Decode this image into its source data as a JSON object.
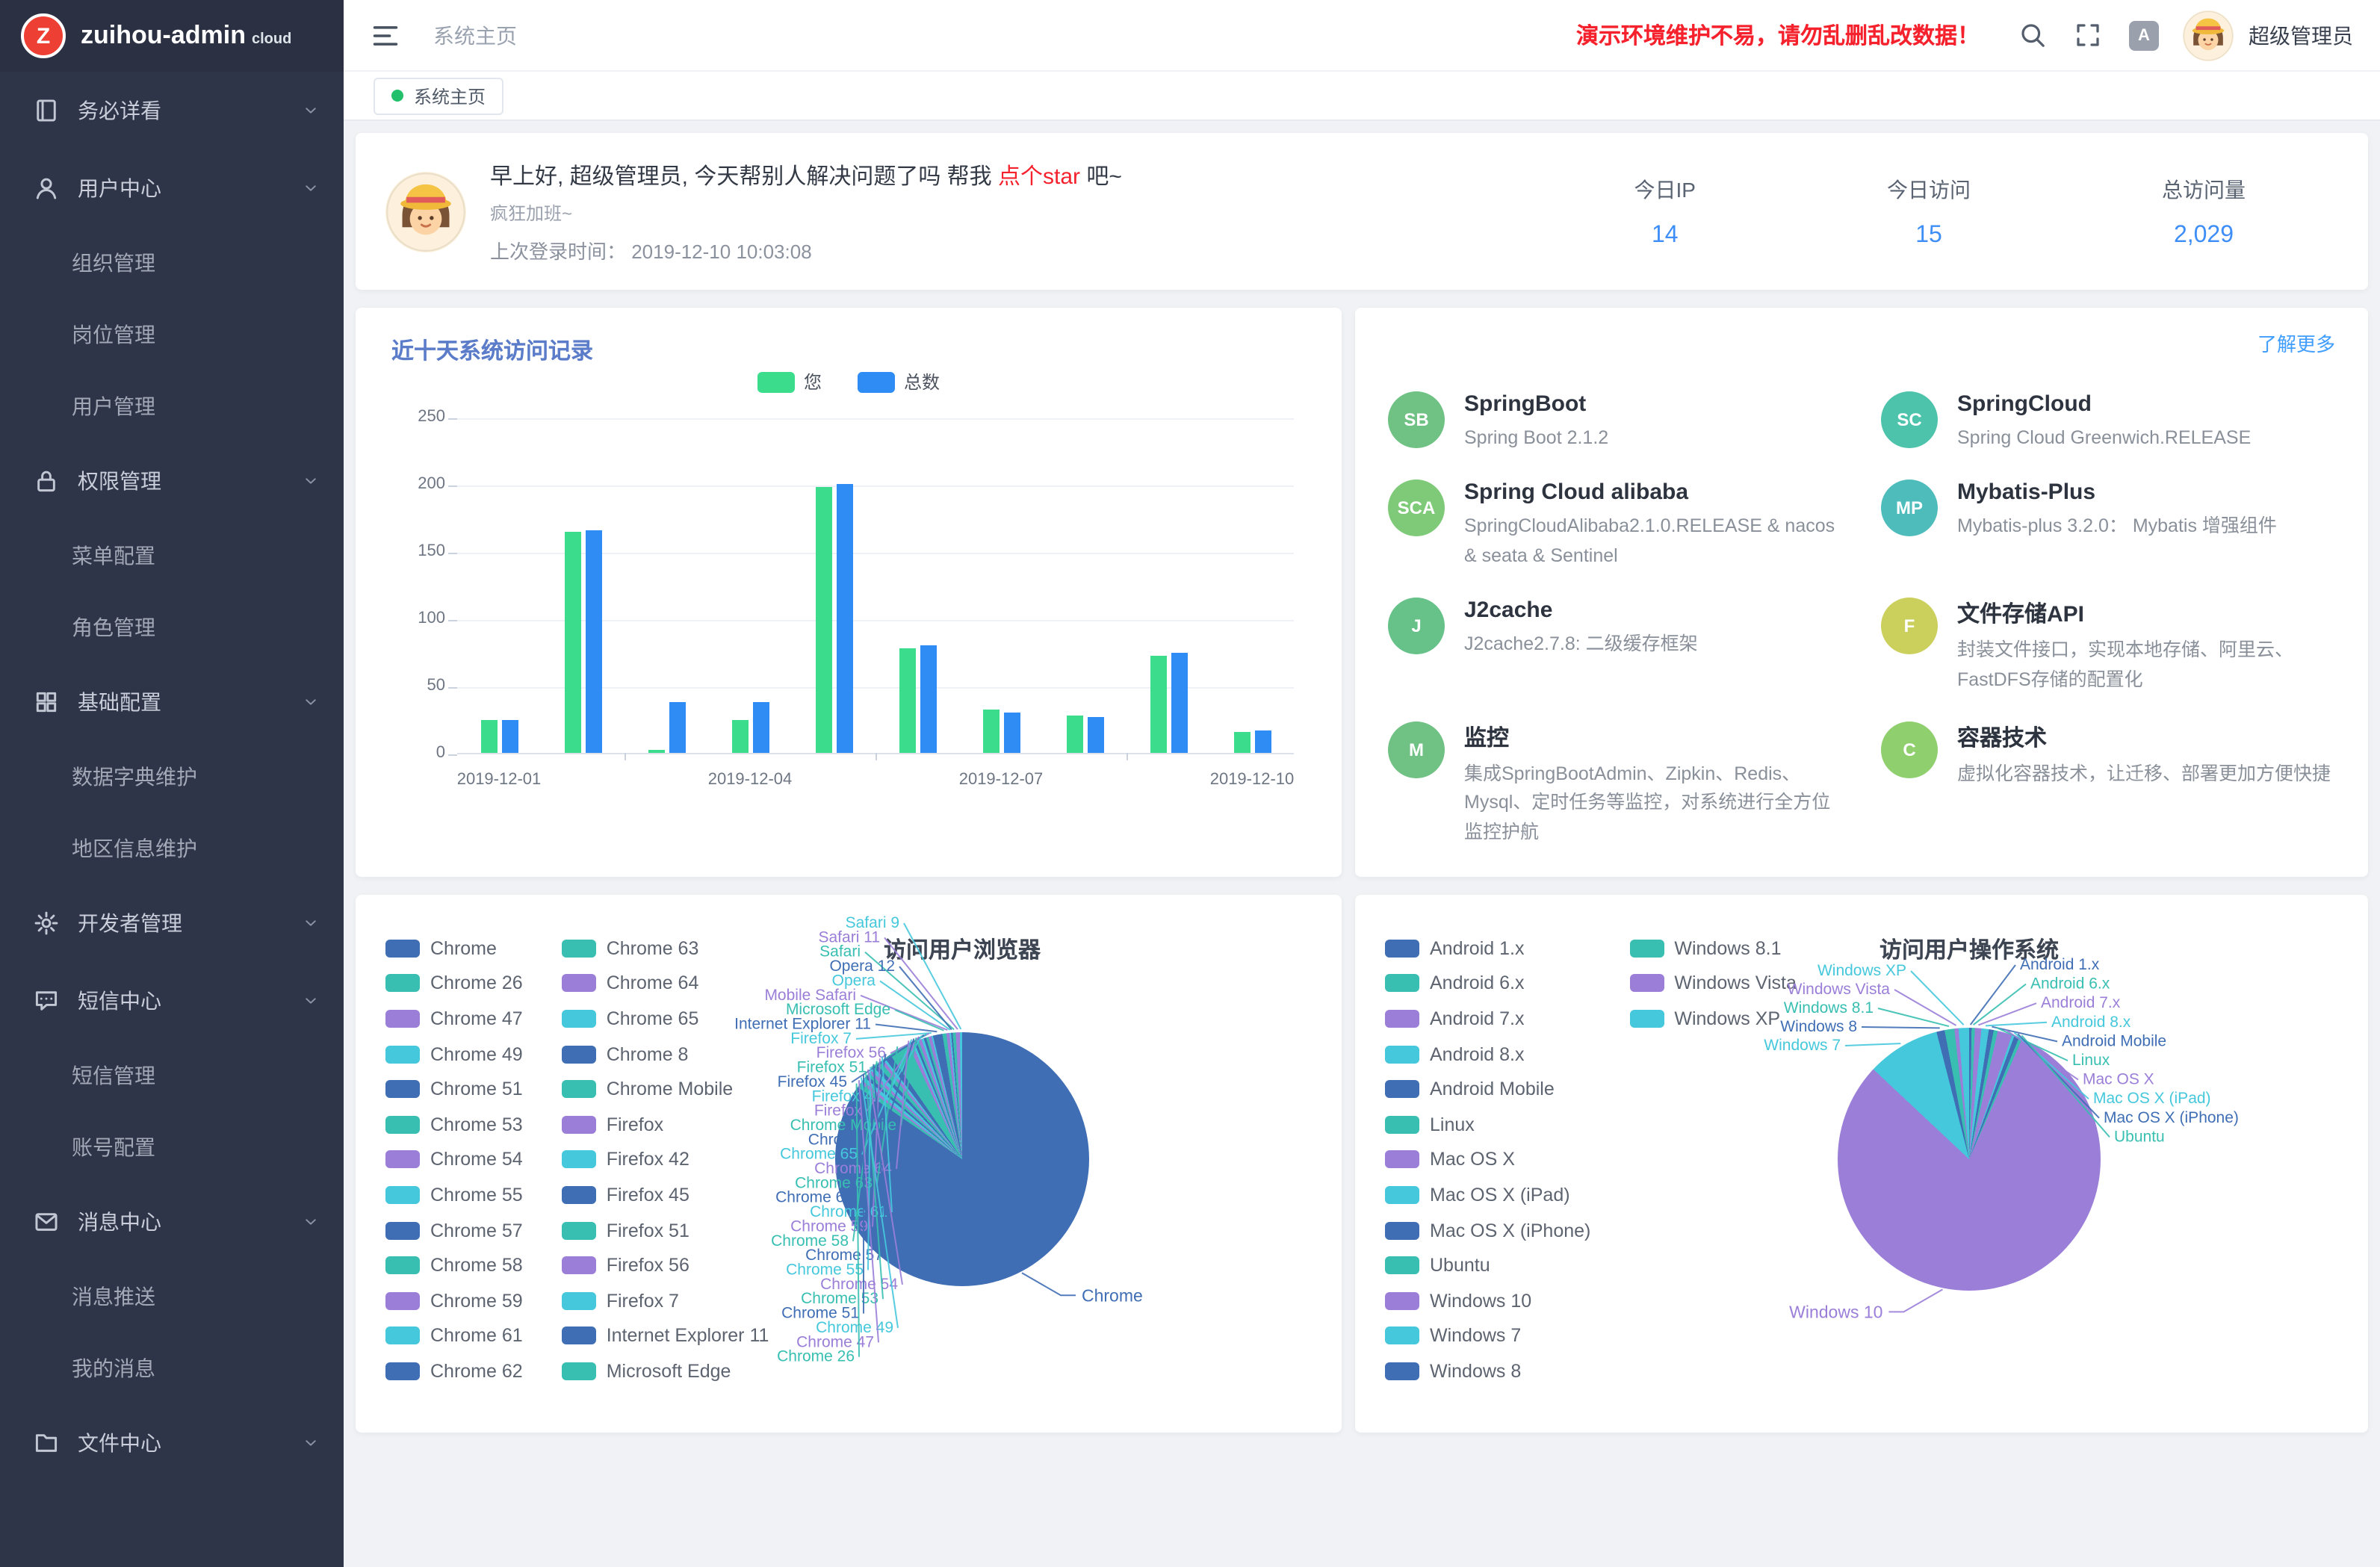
{
  "brand": {
    "logo_letter": "Z",
    "name": "zuihou-admin",
    "suffix": "cloud"
  },
  "header": {
    "breadcrumb": "系统主页",
    "warning": "演示环境维护不易，请勿乱删乱改数据！",
    "username": "超级管理员",
    "icons": [
      "menu-fold-icon",
      "search-icon",
      "fullscreen-icon",
      "font-size-icon",
      "user-avatar"
    ]
  },
  "tabbar": {
    "tabs": [
      {
        "label": "系统主页",
        "active": true
      }
    ]
  },
  "sidebar": {
    "items": [
      {
        "label": "务必详看",
        "icon": "book-icon",
        "expanded": false,
        "children": []
      },
      {
        "label": "用户中心",
        "icon": "user-icon",
        "expanded": true,
        "children": [
          "组织管理",
          "岗位管理",
          "用户管理"
        ]
      },
      {
        "label": "权限管理",
        "icon": "lock-icon",
        "expanded": true,
        "children": [
          "菜单配置",
          "角色管理"
        ]
      },
      {
        "label": "基础配置",
        "icon": "grid-icon",
        "expanded": true,
        "children": [
          "数据字典维护",
          "地区信息维护"
        ]
      },
      {
        "label": "开发者管理",
        "icon": "gear-icon",
        "expanded": false,
        "children": []
      },
      {
        "label": "短信中心",
        "icon": "sms-icon",
        "expanded": true,
        "children": [
          "短信管理",
          "账号配置"
        ]
      },
      {
        "label": "消息中心",
        "icon": "message-icon",
        "expanded": true,
        "children": [
          "消息推送",
          "我的消息"
        ]
      },
      {
        "label": "文件中心",
        "icon": "folder-icon",
        "expanded": false,
        "children": []
      }
    ]
  },
  "greeting": {
    "text_prefix": "早上好, 超级管理员, 今天帮别人解决问题了吗 帮我 ",
    "link": "点个star",
    "text_suffix": " 吧~",
    "mood": "疯狂加班~",
    "last_login": "上次登录时间： 2019-12-10 10:03:08",
    "stats": [
      {
        "label": "今日IP",
        "value": "14"
      },
      {
        "label": "今日访问",
        "value": "15"
      },
      {
        "label": "总访问量",
        "value": "2,029"
      }
    ]
  },
  "features": {
    "more_link": "了解更多",
    "items": [
      {
        "badge": "SB",
        "badge_color": "#6fc184",
        "title": "SpringBoot",
        "desc": "Spring Boot 2.1.2"
      },
      {
        "badge": "SC",
        "badge_color": "#4ec3ab",
        "title": "SpringCloud",
        "desc": "Spring Cloud Greenwich.RELEASE"
      },
      {
        "badge": "SCA",
        "badge_color": "#7fca79",
        "title": "Spring Cloud alibaba",
        "desc": "SpringCloudAlibaba2.1.0.RELEASE & nacos & seata & Sentinel"
      },
      {
        "badge": "MP",
        "badge_color": "#4fbcbc",
        "title": "Mybatis-Plus",
        "desc": "Mybatis-plus 3.2.0： Mybatis 增强组件"
      },
      {
        "badge": "J",
        "badge_color": "#67c289",
        "title": "J2cache",
        "desc": "J2cache2.7.8: 二级缓存框架"
      },
      {
        "badge": "F",
        "badge_color": "#cbd05c",
        "title": "文件存储API",
        "desc": "封装文件接口，实现本地存储、阿里云、FastDFS存储的配置化"
      },
      {
        "badge": "M",
        "badge_color": "#6fc184",
        "title": "监控",
        "desc": "集成SpringBootAdmin、Zipkin、Redis、Mysql、定时任务等监控，对系统进行全方位监控护航"
      },
      {
        "badge": "C",
        "badge_color": "#8fcf6e",
        "title": "容器技术",
        "desc": "虚拟化容器技术，让迁移、部署更加方便快捷"
      }
    ]
  },
  "chart_data": [
    {
      "type": "bar",
      "title": "近十天系统访问记录",
      "categories": [
        "2019-12-01",
        "2019-12-02",
        "2019-12-03",
        "2019-12-04",
        "2019-12-05",
        "2019-12-06",
        "2019-12-07",
        "2019-12-08",
        "2019-12-09",
        "2019-12-10"
      ],
      "series": [
        {
          "name": "您",
          "color": "#3bdd8d",
          "values": [
            24,
            165,
            2,
            24,
            198,
            78,
            32,
            28,
            72,
            16
          ]
        },
        {
          "name": "总数",
          "color": "#2e8cf4",
          "values": [
            25,
            166,
            38,
            38,
            200,
            80,
            30,
            27,
            74,
            17
          ]
        }
      ],
      "ylim": [
        0,
        250
      ],
      "y_ticks": [
        0,
        50,
        100,
        150,
        200,
        250
      ],
      "x_tick_labels": [
        "2019-12-01",
        "2019-12-04",
        "2019-12-07",
        "2019-12-10"
      ],
      "legend_position": "top",
      "grid": true
    },
    {
      "type": "pie",
      "title": "访问用户浏览器",
      "slices": [
        {
          "name": "Chrome",
          "value": 84.6,
          "color": "#3f6eb5",
          "big_label": "right"
        },
        {
          "name": "Chrome 26",
          "value": 0.6,
          "color": "#38bfb1"
        },
        {
          "name": "Chrome 47",
          "value": 0.4,
          "color": "#9a7ed8"
        },
        {
          "name": "Chrome 49",
          "value": 0.5,
          "color": "#45c8dc"
        },
        {
          "name": "Chrome 51",
          "value": 0.4,
          "color": "#3f6eb5"
        },
        {
          "name": "Chrome 53",
          "value": 0.4,
          "color": "#38bfb1"
        },
        {
          "name": "Chrome 54",
          "value": 0.4,
          "color": "#9a7ed8"
        },
        {
          "name": "Chrome 55",
          "value": 0.5,
          "color": "#45c8dc"
        },
        {
          "name": "Chrome 57",
          "value": 0.5,
          "color": "#3f6eb5"
        },
        {
          "name": "Chrome 58",
          "value": 0.6,
          "color": "#38bfb1"
        },
        {
          "name": "Chrome 59",
          "value": 0.4,
          "color": "#9a7ed8"
        },
        {
          "name": "Chrome 61",
          "value": 0.3,
          "color": "#45c8dc"
        },
        {
          "name": "Chrome 62",
          "value": 0.8,
          "color": "#3f6eb5"
        },
        {
          "name": "Chrome 63",
          "value": 2.6,
          "color": "#38bfb1"
        },
        {
          "name": "Chrome 64",
          "value": 0.5,
          "color": "#9a7ed8"
        },
        {
          "name": "Chrome 65",
          "value": 0.3,
          "color": "#45c8dc"
        },
        {
          "name": "Chrome 8",
          "value": 0.3,
          "color": "#3f6eb5"
        },
        {
          "name": "Chrome Mobile",
          "value": 0.3,
          "color": "#38bfb1"
        },
        {
          "name": "Firefox",
          "value": 0.4,
          "color": "#9a7ed8"
        },
        {
          "name": "Firefox 42",
          "value": 0.3,
          "color": "#45c8dc"
        },
        {
          "name": "Firefox 45",
          "value": 0.3,
          "color": "#3f6eb5"
        },
        {
          "name": "Firefox 51",
          "value": 0.3,
          "color": "#38bfb1"
        },
        {
          "name": "Firefox 56",
          "value": 0.4,
          "color": "#9a7ed8"
        },
        {
          "name": "Firefox 7",
          "value": 0.2,
          "color": "#45c8dc"
        },
        {
          "name": "Internet Explorer 11",
          "value": 1.2,
          "color": "#3f6eb5"
        },
        {
          "name": "Microsoft Edge",
          "value": 0.5,
          "color": "#38bfb1"
        },
        {
          "name": "Mobile Safari",
          "value": 0.4,
          "color": "#9a7ed8"
        },
        {
          "name": "Opera",
          "value": 0.2,
          "color": "#45c8dc"
        },
        {
          "name": "Opera 12",
          "value": 0.2,
          "color": "#3f6eb5"
        },
        {
          "name": "Safari",
          "value": 0.4,
          "color": "#38bfb1"
        },
        {
          "name": "Safari 11",
          "value": 0.5,
          "color": "#9a7ed8"
        },
        {
          "name": "Safari 9",
          "value": 0.3,
          "color": "#45c8dc"
        }
      ],
      "legend": [
        "Chrome",
        "Chrome 26",
        "Chrome 47",
        "Chrome 49",
        "Chrome 51",
        "Chrome 53",
        "Chrome 54",
        "Chrome 55",
        "Chrome 57",
        "Chrome 58",
        "Chrome 59",
        "Chrome 61",
        "Chrome 62",
        "Chrome 63",
        "Chrome 64",
        "Chrome 65",
        "Chrome 8",
        "Chrome Mobile",
        "Firefox",
        "Firefox 42",
        "Firefox 45",
        "Firefox 51",
        "Firefox 56",
        "Firefox 7",
        "Internet Explorer 11",
        "Microsoft Edge"
      ],
      "legend_position": "left"
    },
    {
      "type": "pie",
      "title": "访问用户操作系统",
      "slices": [
        {
          "name": "Android 1.x",
          "value": 0.3,
          "color": "#3f6eb5"
        },
        {
          "name": "Android 6.x",
          "value": 0.4,
          "color": "#38bfb1"
        },
        {
          "name": "Android 7.x",
          "value": 0.8,
          "color": "#9a7ed8"
        },
        {
          "name": "Android 8.x",
          "value": 0.9,
          "color": "#45c8dc"
        },
        {
          "name": "Android Mobile",
          "value": 0.6,
          "color": "#3f6eb5"
        },
        {
          "name": "Linux",
          "value": 0.5,
          "color": "#38bfb1"
        },
        {
          "name": "Mac OS X",
          "value": 1.8,
          "color": "#9a7ed8"
        },
        {
          "name": "Mac OS X (iPad)",
          "value": 0.3,
          "color": "#45c8dc"
        },
        {
          "name": "Mac OS X (iPhone)",
          "value": 0.6,
          "color": "#3f6eb5"
        },
        {
          "name": "Ubuntu",
          "value": 0.4,
          "color": "#38bfb1"
        },
        {
          "name": "Windows 10",
          "value": 80.4,
          "color": "#9a7ed8",
          "big_label": "left"
        },
        {
          "name": "Windows 7",
          "value": 9.0,
          "color": "#45c8dc"
        },
        {
          "name": "Windows 8",
          "value": 1.0,
          "color": "#3f6eb5"
        },
        {
          "name": "Windows 8.1",
          "value": 1.2,
          "color": "#38bfb1"
        },
        {
          "name": "Windows Vista",
          "value": 0.5,
          "color": "#9a7ed8"
        },
        {
          "name": "Windows XP",
          "value": 1.3,
          "color": "#45c8dc"
        }
      ],
      "legend": [
        "Android 1.x",
        "Android 6.x",
        "Android 7.x",
        "Android 8.x",
        "Android Mobile",
        "Linux",
        "Mac OS X",
        "Mac OS X (iPad)",
        "Mac OS X (iPhone)",
        "Ubuntu",
        "Windows 10",
        "Windows 7",
        "Windows 8",
        "Windows 8.1",
        "Windows Vista",
        "Windows XP"
      ],
      "legend_position": "left"
    }
  ]
}
